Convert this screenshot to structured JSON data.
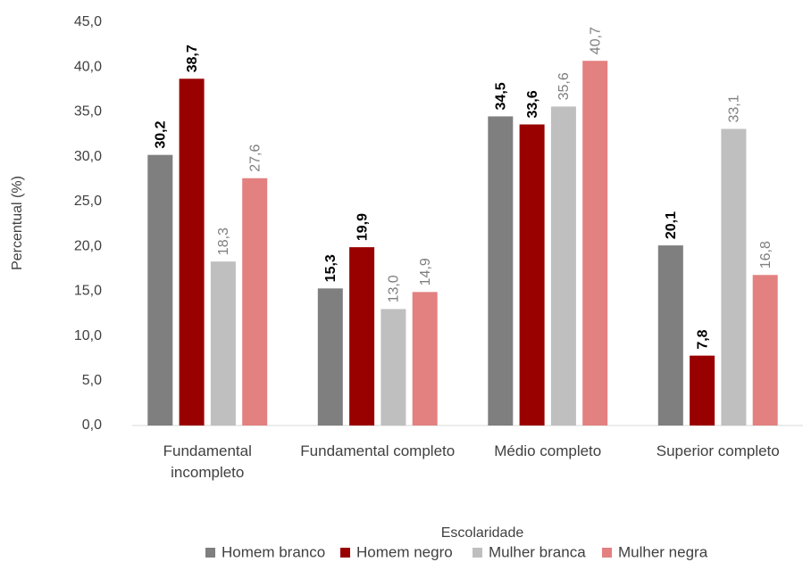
{
  "chart_data": {
    "type": "bar",
    "y_label": "Percentual (%)",
    "x_label": "Escolaridade",
    "categories": [
      "Fundamental incompleto",
      "Fundamental completo",
      "Médio completo",
      "Superior completo"
    ],
    "series": [
      {
        "name": "Homem branco",
        "color": "#7f7f7f",
        "values": [
          30.2,
          15.3,
          34.5,
          20.1
        ],
        "value_labels": [
          "30,2",
          "15,3",
          "34,5",
          "20,1"
        ]
      },
      {
        "name": "Homem negro",
        "color": "#990000",
        "values": [
          38.7,
          19.9,
          33.6,
          7.8
        ],
        "value_labels": [
          "38,7",
          "19,9",
          "33,6",
          "7,8"
        ]
      },
      {
        "name": "Mulher branca",
        "color": "#bfbfbf",
        "values": [
          18.3,
          13.0,
          35.6,
          33.1
        ],
        "value_labels": [
          "18,3",
          "13,0",
          "35,6",
          "33,1"
        ]
      },
      {
        "name": "Mulher negra",
        "color": "#e38080",
        "values": [
          27.6,
          14.9,
          40.7,
          16.8
        ],
        "value_labels": [
          "27,6",
          "14,9",
          "40,7",
          "16,8"
        ]
      }
    ],
    "ylim": [
      0,
      45
    ],
    "yticks": [
      {
        "value": 0,
        "label": "0,0"
      },
      {
        "value": 5,
        "label": "5,0"
      },
      {
        "value": 10,
        "label": "10,0"
      },
      {
        "value": 15,
        "label": "15,0"
      },
      {
        "value": 20,
        "label": "20,0"
      },
      {
        "value": 25,
        "label": "25,0"
      },
      {
        "value": 30,
        "label": "30,0"
      },
      {
        "value": 35,
        "label": "35,0"
      },
      {
        "value": 40,
        "label": "40,0"
      },
      {
        "value": 45,
        "label": "45,0"
      }
    ],
    "grid": false,
    "legend": "bottom"
  }
}
